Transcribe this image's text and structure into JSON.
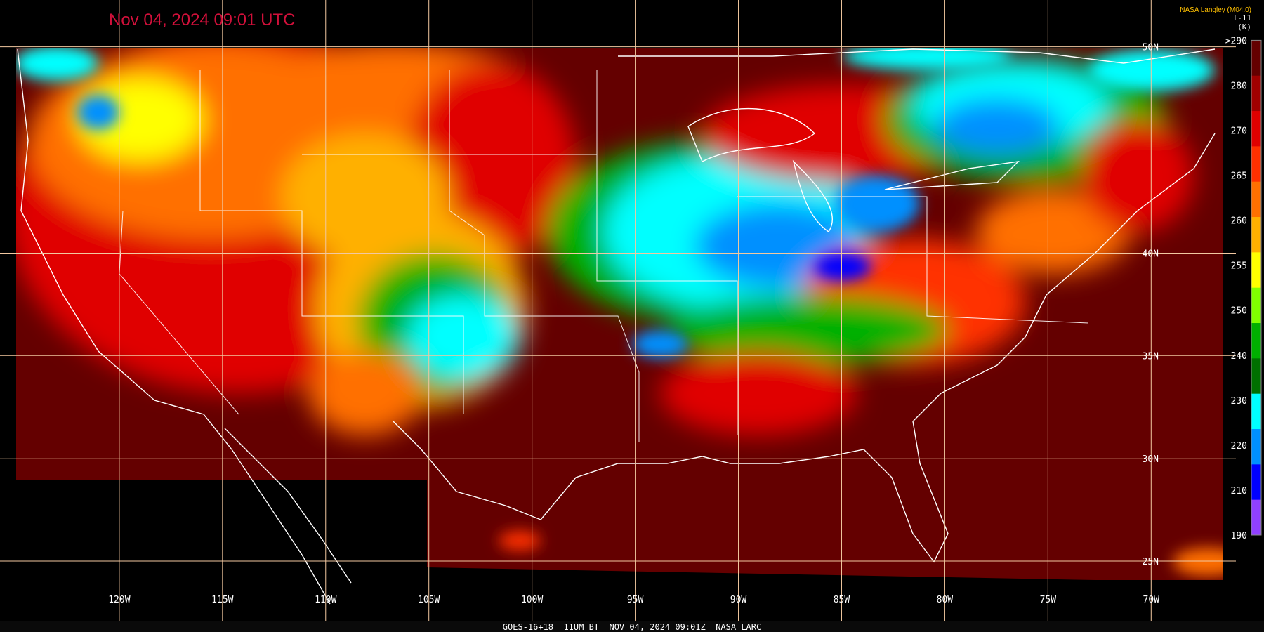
{
  "header": {
    "title": "Nov 04, 2024 09:01 UTC",
    "source": "NASA Langley (M04.0)",
    "channel": "T-11",
    "unit": "(K)"
  },
  "colorbar": {
    "labels": [
      ">290",
      "280",
      "270",
      "265",
      "260",
      "255",
      "250",
      "240",
      "230",
      "220",
      "210",
      "190"
    ],
    "colors": [
      "#640000",
      "#a00000",
      "#e00000",
      "#ff3000",
      "#ff7000",
      "#ffb000",
      "#ffff00",
      "#80ff00",
      "#00b000",
      "#007000",
      "#00ffff",
      "#0090ff",
      "#0000ff",
      "#9040ff"
    ]
  },
  "longitude_labels": [
    "120W",
    "115W",
    "110W",
    "105W",
    "100W",
    "95W",
    "90W",
    "85W",
    "80W",
    "75W",
    "70W"
  ],
  "latitude_labels": [
    "50N",
    "40N",
    "35N",
    "30N",
    "25N"
  ],
  "footer": "GOES-16+18  11UM BT  NOV 04, 2024 09:01Z  NASA LARC"
}
